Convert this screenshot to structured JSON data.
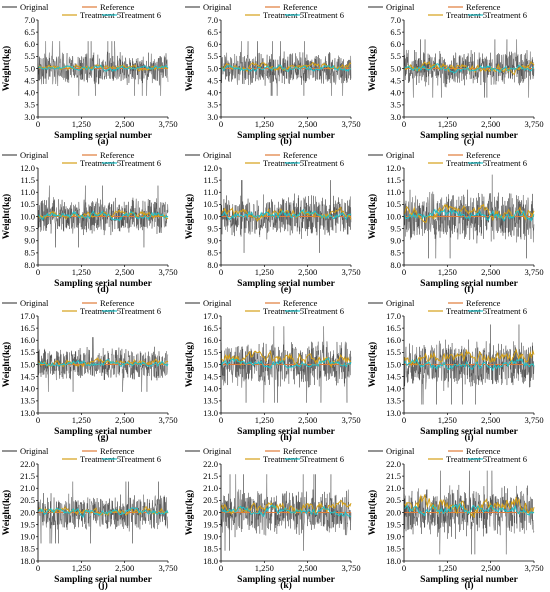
{
  "legend": {
    "original": "Original",
    "reference": "Reference",
    "treatment5": "Treatment 5",
    "treatment6": "Treatment 6"
  },
  "colors": {
    "original": "#4d4d4d",
    "reference": "#e07b39",
    "treatment5": "#d4a017",
    "treatment6": "#1fc0c8"
  },
  "chart_data": [
    {
      "type": "line",
      "panel_label": "(a)",
      "xlabel": "Sampling serial number",
      "ylabel": "Weight(kg)",
      "xlim": [
        0,
        3750
      ],
      "xticks": [
        "0",
        "1,250",
        "2,500",
        "3,750"
      ],
      "ylim": [
        3.0,
        7.0
      ],
      "yticks": [
        "3.0",
        "3.5",
        "4.0",
        "4.5",
        "5.0",
        "5.5",
        "6.0",
        "6.5",
        "7.0"
      ],
      "reference": 5.0,
      "original_band": [
        4.3,
        5.8
      ],
      "treatment5_mean": 5.05,
      "treatment6_mean": 5.0,
      "treatment5_amp": 0.12,
      "treatment6_amp": 0.1,
      "series": [
        {
          "name": "Original"
        },
        {
          "name": "Reference"
        },
        {
          "name": "Treatment 5"
        },
        {
          "name": "Treatment 6"
        }
      ]
    },
    {
      "type": "line",
      "panel_label": "(b)",
      "xlabel": "Sampling serial number",
      "ylabel": "Weight(kg)",
      "xlim": [
        0,
        3750
      ],
      "xticks": [
        "0",
        "1,250",
        "2,500",
        "3,750"
      ],
      "ylim": [
        3.0,
        7.0
      ],
      "yticks": [
        "3.0",
        "3.5",
        "4.0",
        "4.5",
        "5.0",
        "5.5",
        "6.0",
        "6.5",
        "7.0"
      ],
      "reference": 5.0,
      "original_band": [
        4.3,
        5.8
      ],
      "treatment5_mean": 5.08,
      "treatment6_mean": 5.0,
      "treatment5_amp": 0.15,
      "treatment6_amp": 0.12,
      "series": [
        {
          "name": "Original"
        },
        {
          "name": "Reference"
        },
        {
          "name": "Treatment 5"
        },
        {
          "name": "Treatment 6"
        }
      ]
    },
    {
      "type": "line",
      "panel_label": "(c)",
      "xlabel": "Sampling serial number",
      "ylabel": "Weight(kg)",
      "xlim": [
        0,
        3750
      ],
      "xticks": [
        "0",
        "1,250",
        "2,500",
        "3,750"
      ],
      "ylim": [
        3.0,
        7.0
      ],
      "yticks": [
        "3.0",
        "3.5",
        "4.0",
        "4.5",
        "5.0",
        "5.5",
        "6.0",
        "6.5",
        "7.0"
      ],
      "reference": 5.0,
      "original_band": [
        4.3,
        5.9
      ],
      "treatment5_mean": 5.05,
      "treatment6_mean": 5.0,
      "treatment5_amp": 0.18,
      "treatment6_amp": 0.14,
      "series": [
        {
          "name": "Original"
        },
        {
          "name": "Reference"
        },
        {
          "name": "Treatment 5"
        },
        {
          "name": "Treatment 6"
        }
      ]
    },
    {
      "type": "line",
      "panel_label": "(d)",
      "xlabel": "Sampling serial number",
      "ylabel": "Weight(kg)",
      "xlim": [
        0,
        3750
      ],
      "xticks": [
        "0",
        "1,250",
        "2,500",
        "3,750"
      ],
      "ylim": [
        8.0,
        12.0
      ],
      "yticks": [
        "8.0",
        "8.5",
        "9.0",
        "9.5",
        "10.0",
        "10.5",
        "11.0",
        "11.5",
        "12.0"
      ],
      "reference": 10.0,
      "original_band": [
        9.2,
        10.9
      ],
      "treatment5_mean": 10.05,
      "treatment6_mean": 10.05,
      "treatment5_amp": 0.15,
      "treatment6_amp": 0.15,
      "series": [
        {
          "name": "Original"
        },
        {
          "name": "Reference"
        },
        {
          "name": "Treatment 5"
        },
        {
          "name": "Treatment 6"
        }
      ]
    },
    {
      "type": "line",
      "panel_label": "(e)",
      "xlabel": "Sampling serial number",
      "ylabel": "Weight(kg)",
      "xlim": [
        0,
        3750
      ],
      "xticks": [
        "0",
        "1,250",
        "2,500",
        "3,750"
      ],
      "ylim": [
        8.0,
        12.0
      ],
      "yticks": [
        "8.0",
        "8.5",
        "9.0",
        "9.5",
        "10.0",
        "10.5",
        "11.0",
        "11.5",
        "12.0"
      ],
      "reference": 10.0,
      "original_band": [
        9.0,
        11.0
      ],
      "treatment5_mean": 10.1,
      "treatment6_mean": 10.05,
      "treatment5_amp": 0.2,
      "treatment6_amp": 0.18,
      "series": [
        {
          "name": "Original"
        },
        {
          "name": "Reference"
        },
        {
          "name": "Treatment 5"
        },
        {
          "name": "Treatment 6"
        }
      ]
    },
    {
      "type": "line",
      "panel_label": "(f)",
      "xlabel": "Sampling serial number",
      "ylabel": "Weight(kg)",
      "xlim": [
        0,
        3750
      ],
      "xticks": [
        "0",
        "1,250",
        "2,500",
        "3,750"
      ],
      "ylim": [
        8.0,
        12.0
      ],
      "yticks": [
        "8.0",
        "8.5",
        "9.0",
        "9.5",
        "10.0",
        "10.5",
        "11.0",
        "11.5",
        "12.0"
      ],
      "reference": 10.0,
      "original_band": [
        8.9,
        11.2
      ],
      "treatment5_mean": 10.1,
      "treatment6_mean": 10.05,
      "treatment5_amp": 0.28,
      "treatment6_amp": 0.2,
      "series": [
        {
          "name": "Original"
        },
        {
          "name": "Reference"
        },
        {
          "name": "Treatment 5"
        },
        {
          "name": "Treatment 6"
        }
      ]
    },
    {
      "type": "line",
      "panel_label": "(g)",
      "xlabel": "Sampling serial number",
      "ylabel": "Weight(kg)",
      "xlim": [
        0,
        3750
      ],
      "xticks": [
        "0",
        "1,250",
        "2,500",
        "3,750"
      ],
      "ylim": [
        13.0,
        17.0
      ],
      "yticks": [
        "13.0",
        "13.5",
        "14.0",
        "14.5",
        "15.0",
        "15.5",
        "16.0",
        "16.5",
        "17.0"
      ],
      "reference": 15.0,
      "original_band": [
        14.3,
        15.8
      ],
      "treatment5_mean": 15.1,
      "treatment6_mean": 15.05,
      "treatment5_amp": 0.15,
      "treatment6_amp": 0.12,
      "series": [
        {
          "name": "Original"
        },
        {
          "name": "Reference"
        },
        {
          "name": "Treatment 5"
        },
        {
          "name": "Treatment 6"
        }
      ]
    },
    {
      "type": "line",
      "panel_label": "(h)",
      "xlabel": "Sampling serial number",
      "ylabel": "Weight(kg)",
      "xlim": [
        0,
        3750
      ],
      "xticks": [
        "0",
        "1,250",
        "2,500",
        "3,750"
      ],
      "ylim": [
        13.0,
        17.0
      ],
      "yticks": [
        "13.0",
        "13.5",
        "14.0",
        "14.5",
        "15.0",
        "15.5",
        "16.0",
        "16.5",
        "17.0"
      ],
      "reference": 15.0,
      "original_band": [
        14.0,
        16.1
      ],
      "treatment5_mean": 15.25,
      "treatment6_mean": 15.05,
      "treatment5_amp": 0.25,
      "treatment6_amp": 0.15,
      "series": [
        {
          "name": "Original"
        },
        {
          "name": "Reference"
        },
        {
          "name": "Treatment 5"
        },
        {
          "name": "Treatment 6"
        }
      ]
    },
    {
      "type": "line",
      "panel_label": "(i)",
      "xlabel": "Sampling serial number",
      "ylabel": "Weight(kg)",
      "xlim": [
        0,
        3750
      ],
      "xticks": [
        "0",
        "1,250",
        "2,500",
        "3,750"
      ],
      "ylim": [
        13.0,
        17.0
      ],
      "yticks": [
        "13.0",
        "13.5",
        "14.0",
        "14.5",
        "15.0",
        "15.5",
        "16.0",
        "16.5",
        "17.0"
      ],
      "reference": 15.0,
      "original_band": [
        14.0,
        16.2
      ],
      "treatment5_mean": 15.3,
      "treatment6_mean": 15.0,
      "treatment5_amp": 0.3,
      "treatment6_amp": 0.18,
      "series": [
        {
          "name": "Original"
        },
        {
          "name": "Reference"
        },
        {
          "name": "Treatment 5"
        },
        {
          "name": "Treatment 6"
        }
      ]
    },
    {
      "type": "line",
      "panel_label": "(j)",
      "xlabel": "Sampling serial number",
      "ylabel": "Weight(kg)",
      "xlim": [
        0,
        3750
      ],
      "xticks": [
        "0",
        "1,250",
        "2,500",
        "3,750"
      ],
      "ylim": [
        18.0,
        22.0
      ],
      "yticks": [
        "18.0",
        "18.5",
        "19.0",
        "19.5",
        "20.0",
        "20.5",
        "21.0",
        "21.5",
        "22.0"
      ],
      "reference": 20.0,
      "original_band": [
        19.2,
        20.9
      ],
      "treatment5_mean": 20.05,
      "treatment6_mean": 20.0,
      "treatment5_amp": 0.15,
      "treatment6_amp": 0.15,
      "series": [
        {
          "name": "Original"
        },
        {
          "name": "Reference"
        },
        {
          "name": "Treatment 5"
        },
        {
          "name": "Treatment 6"
        }
      ]
    },
    {
      "type": "line",
      "panel_label": "(k)",
      "xlabel": "Sampling serial number",
      "ylabel": "Weight(kg)",
      "xlim": [
        0,
        3750
      ],
      "xticks": [
        "0",
        "1,250",
        "2,500",
        "3,750"
      ],
      "ylim": [
        18.0,
        22.0
      ],
      "yticks": [
        "18.0",
        "18.5",
        "19.0",
        "19.5",
        "20.0",
        "20.5",
        "21.0",
        "21.5",
        "22.0"
      ],
      "reference": 20.0,
      "original_band": [
        19.0,
        21.1
      ],
      "treatment5_mean": 20.2,
      "treatment6_mean": 20.05,
      "treatment5_amp": 0.25,
      "treatment6_amp": 0.18,
      "series": [
        {
          "name": "Original"
        },
        {
          "name": "Reference"
        },
        {
          "name": "Treatment 5"
        },
        {
          "name": "Treatment 6"
        }
      ]
    },
    {
      "type": "line",
      "panel_label": "(l)",
      "xlabel": "Sampling serial number",
      "ylabel": "Weight(kg)",
      "xlim": [
        0,
        3750
      ],
      "xticks": [
        "0",
        "1,250",
        "2,500",
        "3,750"
      ],
      "ylim": [
        18.0,
        22.0
      ],
      "yticks": [
        "18.0",
        "18.5",
        "19.0",
        "19.5",
        "20.0",
        "20.5",
        "21.0",
        "21.5",
        "22.0"
      ],
      "reference": 20.0,
      "original_band": [
        19.0,
        21.3
      ],
      "treatment5_mean": 20.3,
      "treatment6_mean": 20.1,
      "treatment5_amp": 0.35,
      "treatment6_amp": 0.2,
      "series": [
        {
          "name": "Original"
        },
        {
          "name": "Reference"
        },
        {
          "name": "Treatment 5"
        },
        {
          "name": "Treatment 6"
        }
      ]
    }
  ]
}
